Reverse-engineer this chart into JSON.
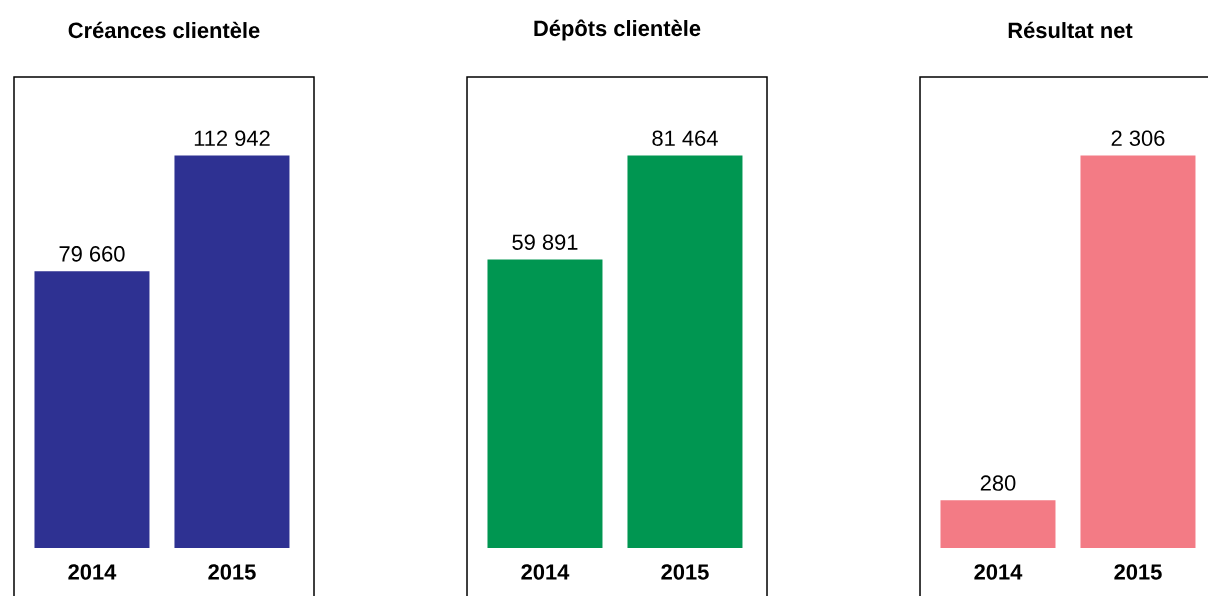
{
  "chart_data": [
    {
      "type": "bar",
      "title": "Créances clientèle",
      "categories": [
        "2014",
        "2015"
      ],
      "values": [
        79660,
        112942
      ],
      "color": "#2e3192",
      "value_labels": [
        "79 660",
        "112 942"
      ],
      "tick_labels": "x"
    },
    {
      "type": "bar",
      "title": "Dépôts clientèle",
      "categories": [
        "2014",
        "2015"
      ],
      "values": [
        59891,
        81464
      ],
      "color": "#009651",
      "value_labels": [
        "59 891",
        "81 464"
      ],
      "tick_labels": "x"
    },
    {
      "type": "bar",
      "title": "Résultat net",
      "categories": [
        "2014",
        "2015"
      ],
      "values": [
        280,
        2306
      ],
      "color": "#f37b85",
      "value_labels": [
        "280",
        "2 306"
      ],
      "tick_labels": "x"
    }
  ]
}
